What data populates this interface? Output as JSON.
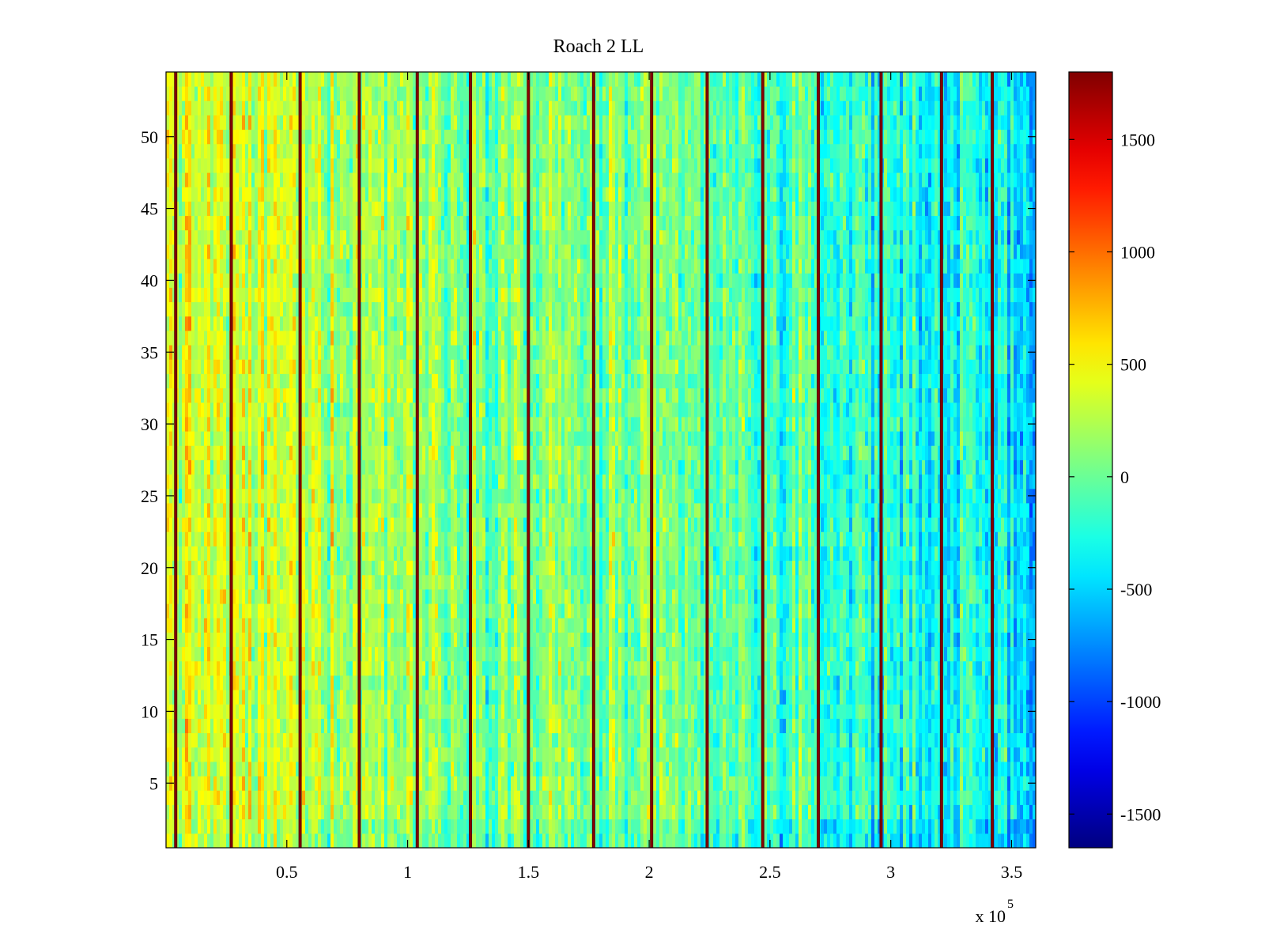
{
  "chart_data": {
    "type": "heatmap",
    "title": "Roach 2 LL",
    "xlabel": "",
    "ylabel": "",
    "x_multiplier_label": "x 10",
    "x_multiplier_exponent": "5",
    "xlim": [
      0,
      360000
    ],
    "ylim": [
      0.5,
      54.5
    ],
    "n_rows": 54,
    "x_ticks": [
      {
        "value": 50000,
        "label": "0.5"
      },
      {
        "value": 100000,
        "label": "1"
      },
      {
        "value": 150000,
        "label": "1.5"
      },
      {
        "value": 200000,
        "label": "2"
      },
      {
        "value": 250000,
        "label": "2.5"
      },
      {
        "value": 300000,
        "label": "3"
      },
      {
        "value": 350000,
        "label": "3.5"
      }
    ],
    "y_ticks": [
      {
        "value": 5,
        "label": "5"
      },
      {
        "value": 10,
        "label": "10"
      },
      {
        "value": 15,
        "label": "15"
      },
      {
        "value": 20,
        "label": "20"
      },
      {
        "value": 25,
        "label": "25"
      },
      {
        "value": 30,
        "label": "30"
      },
      {
        "value": 35,
        "label": "35"
      },
      {
        "value": 40,
        "label": "40"
      },
      {
        "value": 45,
        "label": "45"
      },
      {
        "value": 50,
        "label": "50"
      }
    ],
    "colorbar": {
      "colormap": "jet",
      "range": [
        -1650,
        1800
      ],
      "ticks": [
        {
          "value": 1500,
          "label": "1500"
        },
        {
          "value": 1000,
          "label": "1000"
        },
        {
          "value": 500,
          "label": "500"
        },
        {
          "value": 0,
          "label": "0"
        },
        {
          "value": -500,
          "label": "-500"
        },
        {
          "value": -1000,
          "label": "-1000"
        },
        {
          "value": -1500,
          "label": "-1500"
        }
      ]
    },
    "trend": {
      "x": [
        0,
        60000,
        120000,
        180000,
        240000,
        300000,
        360000
      ],
      "mean_value": [
        380,
        300,
        150,
        50,
        -100,
        -230,
        -420
      ],
      "bottom_rows_offset": -150
    },
    "spike_columns_x": [
      4000,
      27000,
      55500,
      80000,
      104000,
      126000,
      150000,
      177000,
      201000,
      224000,
      247000,
      270000,
      296000,
      321000,
      342000
    ],
    "spike_value": 1750
  }
}
